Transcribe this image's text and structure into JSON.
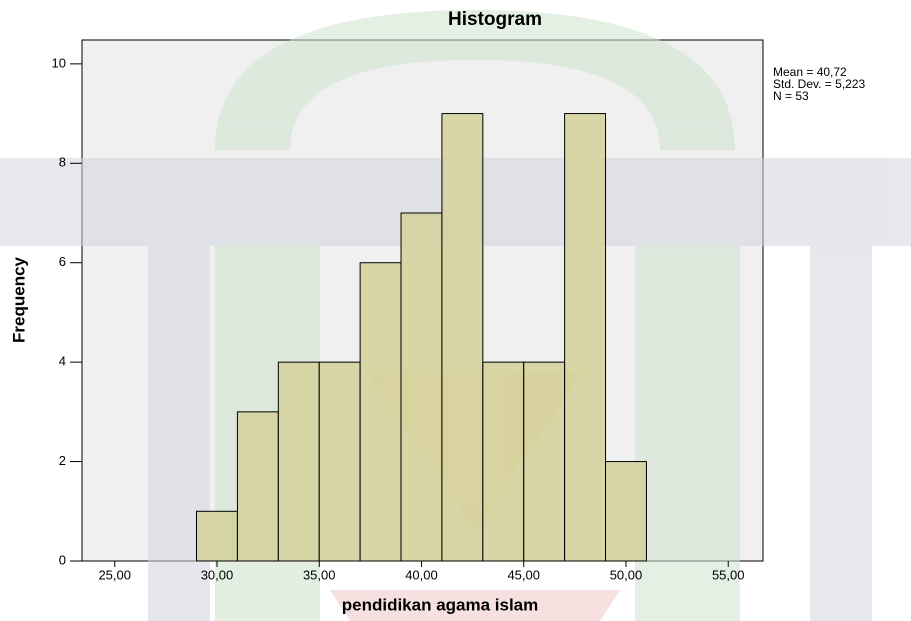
{
  "chart_data": {
    "type": "histogram",
    "title": "Histogram",
    "x_label": "pendidikan agama islam",
    "y_label": "Frequency",
    "bins": [
      29,
      31,
      33,
      35,
      37,
      39,
      41,
      43,
      45,
      47,
      49,
      51
    ],
    "values": [
      1,
      3,
      4,
      4,
      6,
      7,
      9,
      4,
      4,
      9,
      2
    ],
    "color": "#d4d09a",
    "xlim": [
      23.4,
      56.7
    ],
    "xticks": [
      {
        "value": 25,
        "label": "25,00"
      },
      {
        "value": 30,
        "label": "30,00"
      },
      {
        "value": 35,
        "label": "35,00"
      },
      {
        "value": 40,
        "label": "40,00"
      },
      {
        "value": 45,
        "label": "45,00"
      },
      {
        "value": 50,
        "label": "50,00"
      },
      {
        "value": 55,
        "label": "55,00"
      }
    ],
    "ylim": [
      0,
      10.48
    ],
    "yticks": [
      0,
      2,
      4,
      6,
      8,
      10
    ],
    "annotations": [
      "Mean = 40,72",
      "Std. Dev. = 5,223",
      "N = 53"
    ]
  }
}
